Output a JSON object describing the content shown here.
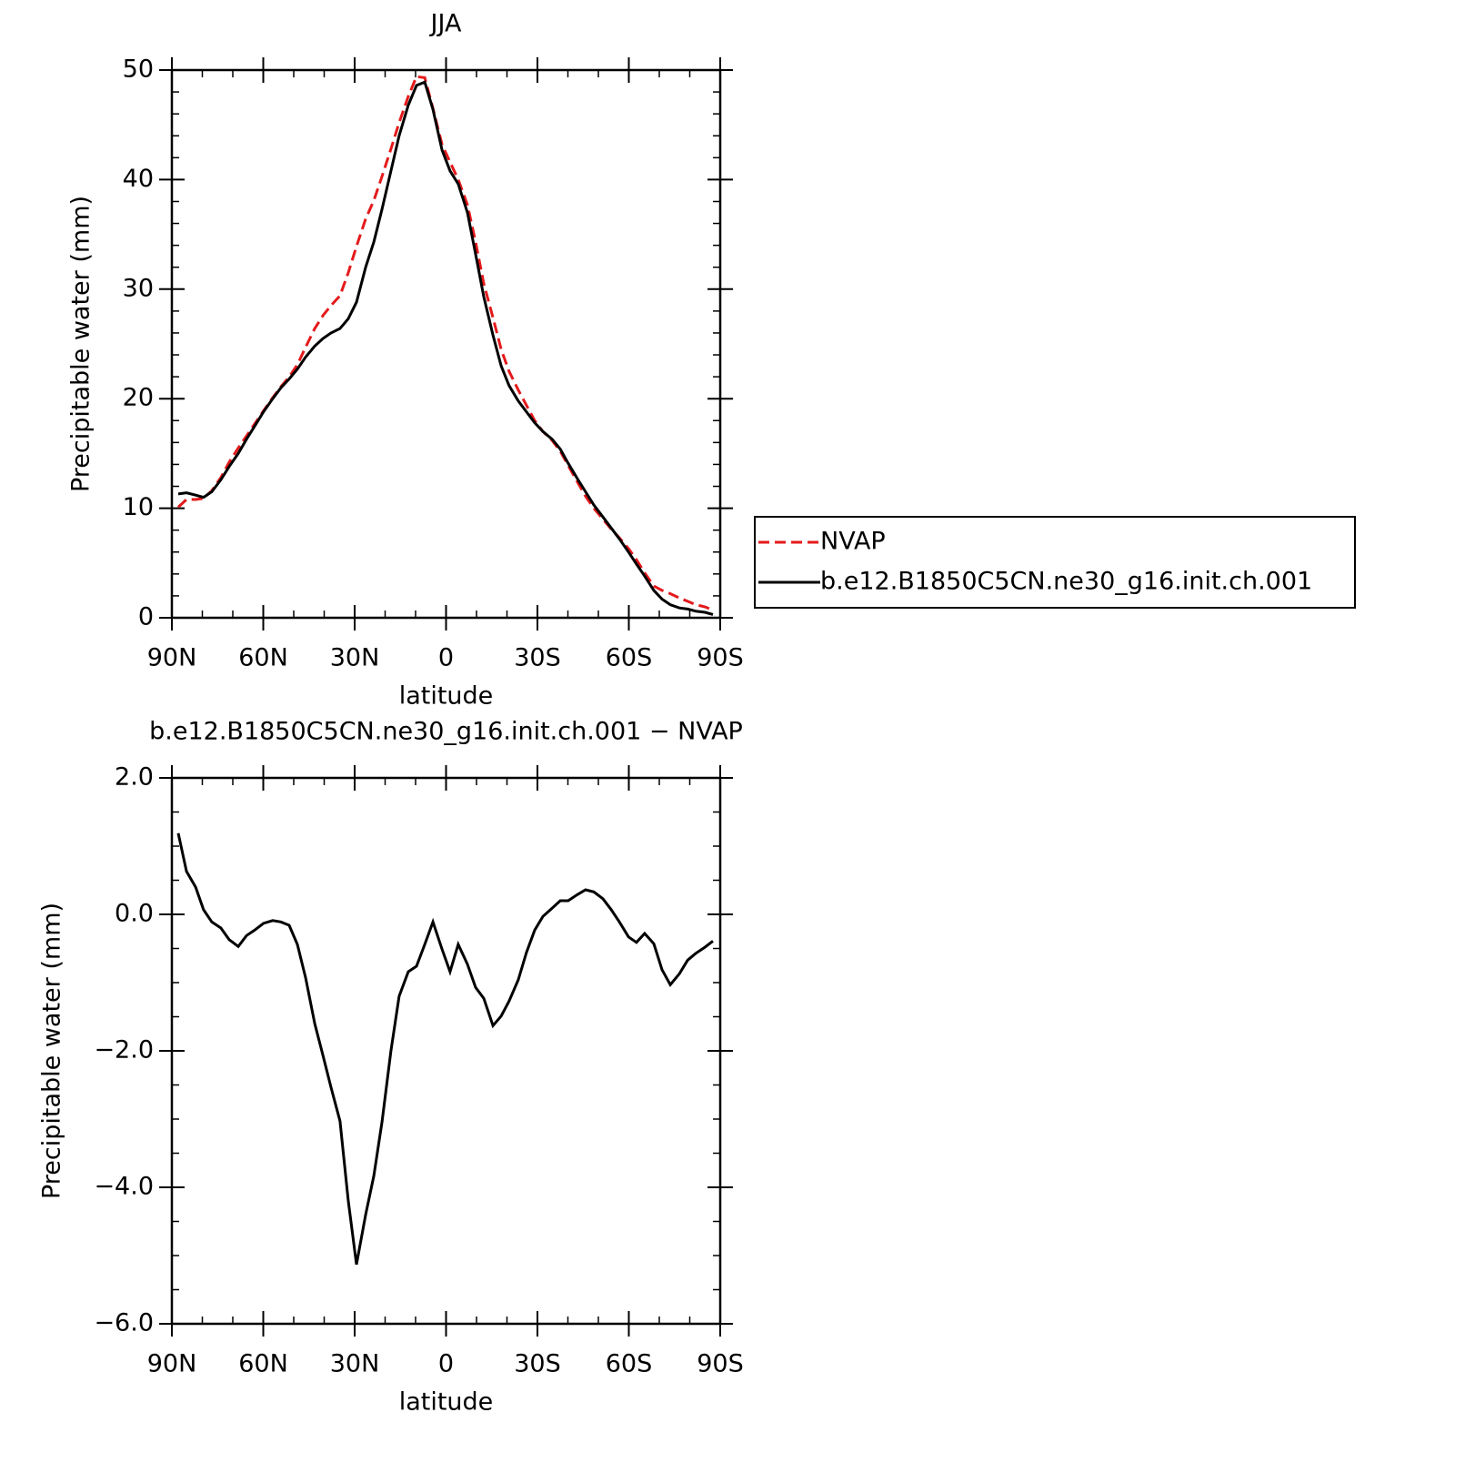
{
  "chart_data": [
    {
      "type": "line",
      "title": "JJA",
      "xlabel": "latitude",
      "ylabel": "Precipitable water (mm)",
      "x": [
        87.9,
        85.2,
        82.2,
        79.6,
        76.9,
        73.9,
        71.2,
        68.2,
        65.5,
        62.8,
        59.9,
        56.9,
        54.2,
        51.5,
        48.8,
        46.1,
        43.1,
        40.4,
        37.8,
        34.8,
        32.1,
        29.4,
        26.4,
        23.7,
        21.0,
        18.1,
        15.4,
        12.4,
        9.7,
        7.0,
        4.3,
        1.3,
        -1.3,
        -4.0,
        -7.0,
        -9.7,
        -12.4,
        -15.4,
        -18.1,
        -20.7,
        -23.7,
        -26.4,
        -29.1,
        -31.8,
        -34.8,
        -37.5,
        -40.1,
        -43.1,
        -45.8,
        -48.5,
        -51.5,
        -54.2,
        -56.9,
        -59.9,
        -62.5,
        -65.2,
        -68.2,
        -70.9,
        -73.6,
        -76.6,
        -79.3,
        -82.0,
        -85.0,
        -87.6
      ],
      "series": [
        {
          "name": "NVAP",
          "color": "#e41a1c",
          "dash": "dashed",
          "values": [
            10.1,
            10.8,
            10.8,
            10.9,
            11.6,
            12.8,
            14.2,
            15.5,
            16.6,
            17.7,
            18.9,
            20.1,
            21.1,
            22.0,
            23.1,
            24.7,
            26.4,
            27.6,
            28.5,
            29.4,
            31.5,
            33.9,
            36.4,
            38.1,
            40.3,
            42.8,
            45.2,
            47.6,
            49.4,
            49.3,
            46.5,
            43.2,
            41.6,
            40.0,
            37.7,
            34.3,
            30.5,
            27.4,
            24.5,
            22.5,
            20.8,
            19.4,
            18.0,
            17.0,
            16.2,
            15.2,
            13.9,
            12.4,
            11.1,
            10.0,
            9.0,
            8.1,
            7.3,
            6.3,
            5.3,
            4.1,
            2.9,
            2.5,
            2.2,
            1.8,
            1.5,
            1.2,
            1.0,
            0.7
          ]
        },
        {
          "name": "b.e12.B1850C5CN.ne30_g16.init.ch.001",
          "color": "#000000",
          "dash": "solid",
          "values": [
            11.3,
            11.4,
            11.2,
            11.0,
            11.5,
            12.6,
            13.8,
            15.0,
            16.3,
            17.5,
            18.8,
            20.0,
            21.0,
            21.8,
            22.7,
            23.8,
            24.8,
            25.5,
            26.0,
            26.4,
            27.3,
            28.8,
            32.0,
            34.3,
            37.3,
            40.8,
            44.0,
            46.8,
            48.6,
            48.9,
            46.4,
            42.7,
            40.8,
            39.6,
            37.0,
            33.2,
            29.3,
            25.8,
            23.0,
            21.2,
            19.8,
            18.8,
            17.8,
            17.0,
            16.3,
            15.4,
            14.1,
            12.7,
            11.5,
            10.3,
            9.2,
            8.2,
            7.2,
            6.0,
            4.9,
            3.8,
            2.5,
            1.7,
            1.2,
            0.9,
            0.8,
            0.6,
            0.5,
            0.3
          ]
        }
      ],
      "xlim": [
        90,
        -90
      ],
      "xticks": [
        {
          "value": 90,
          "label": "90N"
        },
        {
          "value": 60,
          "label": "60N"
        },
        {
          "value": 30,
          "label": "30N"
        },
        0,
        {
          "value": -30,
          "label": "30S"
        },
        {
          "value": -60,
          "label": "60S"
        },
        {
          "value": -90,
          "label": "90S"
        }
      ],
      "minor_xticks": [
        80,
        70,
        50,
        40,
        20,
        10,
        -10,
        -20,
        -40,
        -50,
        -70,
        -80
      ],
      "ylim": [
        0,
        50
      ],
      "yticks": [
        0,
        10,
        20,
        30,
        40,
        50
      ],
      "minor_yticks": [
        2,
        4,
        6,
        8,
        12,
        14,
        16,
        18,
        22,
        24,
        26,
        28,
        32,
        34,
        36,
        38,
        42,
        44,
        46,
        48
      ],
      "legend": "outside-right"
    },
    {
      "type": "line",
      "title": "b.e12.B1850C5CN.ne30_g16.init.ch.001 − NVAP",
      "xlabel": "latitude",
      "ylabel": "Precipitable water (mm)",
      "x": [
        87.9,
        85.2,
        82.2,
        79.6,
        76.9,
        73.9,
        71.2,
        68.2,
        65.5,
        62.8,
        59.9,
        56.9,
        54.2,
        51.5,
        48.8,
        46.1,
        43.1,
        40.4,
        37.8,
        34.8,
        32.1,
        29.4,
        26.4,
        23.7,
        21.0,
        18.1,
        15.4,
        12.4,
        9.7,
        7.0,
        4.3,
        1.3,
        -1.3,
        -4.0,
        -7.0,
        -9.7,
        -12.4,
        -15.4,
        -18.1,
        -20.7,
        -23.7,
        -26.4,
        -29.1,
        -31.8,
        -34.8,
        -37.5,
        -40.1,
        -43.1,
        -45.8,
        -48.5,
        -51.5,
        -54.2,
        -56.9,
        -59.9,
        -62.5,
        -65.2,
        -68.2,
        -70.9,
        -73.6,
        -76.6,
        -79.3,
        -82.0,
        -85.0,
        -87.6
      ],
      "color": "#000000",
      "values": [
        1.19,
        0.63,
        0.4,
        0.07,
        -0.11,
        -0.2,
        -0.37,
        -0.47,
        -0.31,
        -0.23,
        -0.13,
        -0.09,
        -0.11,
        -0.16,
        -0.44,
        -0.93,
        -1.6,
        -2.07,
        -2.53,
        -3.03,
        -4.2,
        -5.13,
        -4.4,
        -3.83,
        -3.04,
        -2.0,
        -1.2,
        -0.84,
        -0.76,
        -0.44,
        -0.11,
        -0.51,
        -0.84,
        -0.44,
        -0.73,
        -1.07,
        -1.23,
        -1.63,
        -1.49,
        -1.27,
        -0.96,
        -0.56,
        -0.23,
        -0.03,
        0.09,
        0.2,
        0.2,
        0.29,
        0.36,
        0.33,
        0.23,
        0.07,
        -0.11,
        -0.33,
        -0.41,
        -0.28,
        -0.43,
        -0.81,
        -1.03,
        -0.87,
        -0.67,
        -0.57,
        -0.48,
        -0.39
      ],
      "xlim": [
        90,
        -90
      ],
      "xticks": [
        {
          "value": 90,
          "label": "90N"
        },
        {
          "value": 60,
          "label": "60N"
        },
        {
          "value": 30,
          "label": "30N"
        },
        0,
        {
          "value": -30,
          "label": "30S"
        },
        {
          "value": -60,
          "label": "60S"
        },
        {
          "value": -90,
          "label": "90S"
        }
      ],
      "minor_xticks": [
        80,
        70,
        50,
        40,
        20,
        10,
        -10,
        -20,
        -40,
        -50,
        -70,
        -80
      ],
      "ylim": [
        -6,
        2
      ],
      "yticks": [
        {
          "value": -6,
          "label": "−6.0"
        },
        {
          "value": -4,
          "label": "−4.0"
        },
        {
          "value": -2,
          "label": "−2.0"
        },
        {
          "value": 0,
          "label": "0.0"
        },
        {
          "value": 2,
          "label": "2.0"
        }
      ],
      "minor_yticks": [
        -5.5,
        -5,
        -4.5,
        -3.5,
        -3,
        -2.5,
        -1.5,
        -1,
        -0.5,
        0.5,
        1,
        1.5
      ]
    }
  ]
}
